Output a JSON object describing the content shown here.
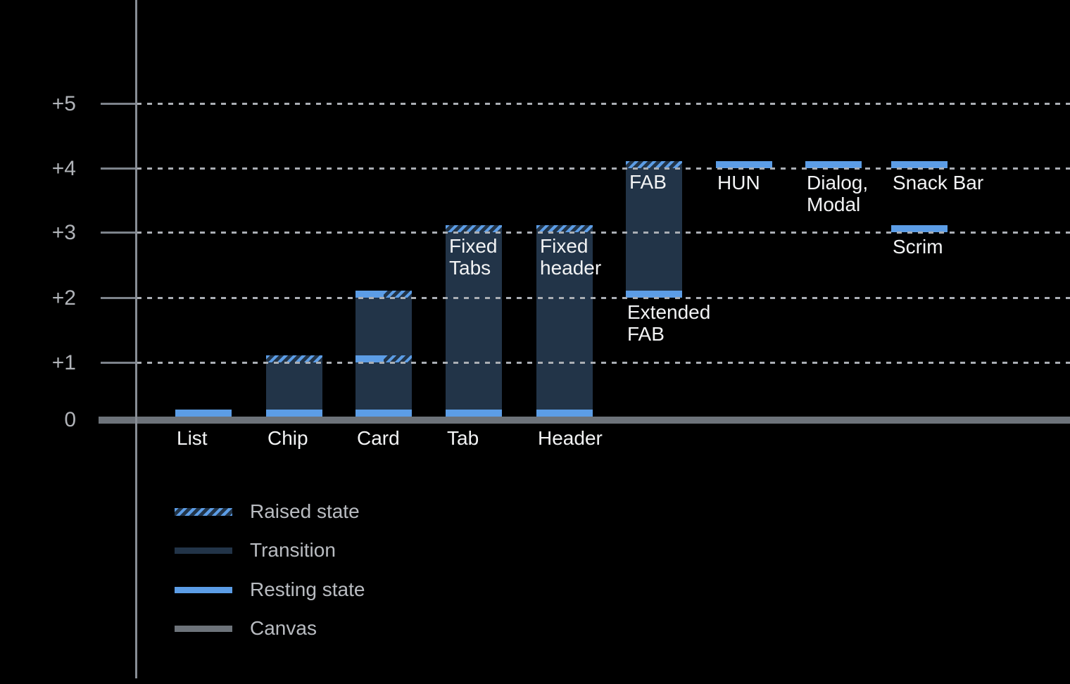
{
  "chart_data": {
    "type": "bar",
    "description": "Elevation / depth diagram of UI components: resting state, transition range and raised state per component, above a canvas baseline",
    "background_color": "#000000",
    "grid": "dotted horizontal gridlines at +1 through +5",
    "y_axis": {
      "ticks": [
        {
          "label": "+5",
          "value": 5
        },
        {
          "label": "+4",
          "value": 4
        },
        {
          "label": "+3",
          "value": 3
        },
        {
          "label": "+2",
          "value": 2
        },
        {
          "label": "+1",
          "value": 1
        },
        {
          "label": "0",
          "value": 0
        }
      ],
      "ylim": [
        0,
        5.5
      ]
    },
    "bars": [
      {
        "name": "List",
        "column": 0,
        "axis_label": "List",
        "resting_levels": [
          0
        ],
        "transition": null,
        "raised_levels": []
      },
      {
        "name": "Chip",
        "column": 1,
        "axis_label": "Chip",
        "resting_levels": [
          0
        ],
        "transition": [
          0,
          1
        ],
        "raised_levels": [
          1
        ]
      },
      {
        "name": "Card",
        "column": 2,
        "axis_label": "Card",
        "resting_levels": [
          0,
          1,
          2
        ],
        "transition": [
          0,
          2
        ],
        "raised_levels": [
          1,
          2
        ]
      },
      {
        "name": "Tab",
        "column": 3,
        "axis_label": "Tab",
        "inner_label": [
          "Fixed",
          "Tabs"
        ],
        "resting_levels": [
          0
        ],
        "transition": [
          0,
          3
        ],
        "raised_levels": [
          3
        ]
      },
      {
        "name": "Header",
        "column": 4,
        "axis_label": "Header",
        "inner_label": [
          "Fixed",
          "header"
        ],
        "resting_levels": [
          0
        ],
        "transition": [
          0,
          3
        ],
        "raised_levels": [
          3
        ]
      },
      {
        "name": "FAB",
        "column": 5,
        "inner_label": [
          "FAB"
        ],
        "below_label": [
          "Extended",
          "FAB"
        ],
        "resting_levels": [
          2
        ],
        "transition": [
          2,
          4
        ],
        "raised_levels": [
          4
        ]
      },
      {
        "name": "HUN",
        "column": 6,
        "below_label": [
          "HUN"
        ],
        "resting_levels": [
          4
        ],
        "transition": null,
        "raised_levels": []
      },
      {
        "name": "Dialog, Modal",
        "column": 7,
        "below_label": [
          "Dialog,",
          "Modal"
        ],
        "resting_levels": [
          4
        ],
        "transition": null,
        "raised_levels": []
      },
      {
        "name": "Snack Bar",
        "column": 8,
        "below_label": [
          "Snack Bar"
        ],
        "resting_levels": [
          4
        ],
        "transition": null,
        "raised_levels": []
      },
      {
        "name": "Scrim",
        "column": 8,
        "below_label": [
          "Scrim"
        ],
        "resting_levels": [
          3
        ],
        "transition": null,
        "raised_levels": []
      }
    ],
    "legend": {
      "position": "bottom-left",
      "items": [
        {
          "key": "raised",
          "label": "Raised state"
        },
        {
          "key": "transition",
          "label": "Transition"
        },
        {
          "key": "resting",
          "label": "Resting state"
        },
        {
          "key": "canvas",
          "label": "Canvas"
        }
      ]
    },
    "colors": {
      "resting": "#5c9de6",
      "transition": "#223448",
      "raised_stripe": "#5c9de6",
      "canvas": "#6d737a",
      "grid_dots": "#aaaeb4",
      "axis": "#878d95",
      "axis_label": "#b0b3b8",
      "bar_label": "#f2f3f4",
      "legend_text": "#b9bcc1",
      "background": "#000000"
    }
  }
}
